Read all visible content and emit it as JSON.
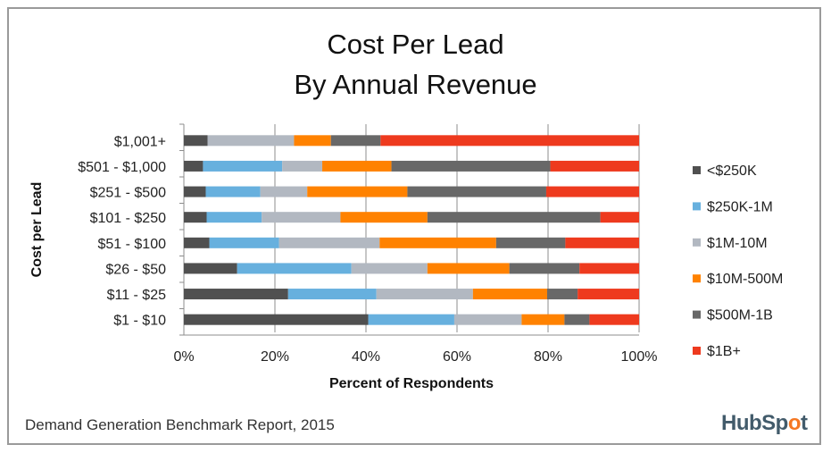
{
  "chart_data": {
    "type": "bar",
    "orientation": "horizontal",
    "stacked": true,
    "title_lines": [
      "Cost Per Lead",
      "By Annual Revenue"
    ],
    "xlabel": "Percent of Respondents",
    "ylabel": "Cost per Lead",
    "xlim": [
      0,
      100
    ],
    "xticks": [
      "0%",
      "20%",
      "40%",
      "60%",
      "80%",
      "100%"
    ],
    "grid": true,
    "legend_position": "right",
    "categories": [
      "$1,001+",
      "$501 - $1,000",
      "$251 - $500",
      "$101 - $250",
      "$51 - $100",
      "$26 - $50",
      "$11 - $25",
      "$1 - $10"
    ],
    "series": [
      {
        "name": "<$250K",
        "color": "#505050",
        "values": [
          5.2,
          4.2,
          4.8,
          5.0,
          5.6,
          11.7,
          22.9,
          40.5
        ]
      },
      {
        "name": "$250K-1M",
        "color": "#67B0DE",
        "values": [
          0,
          17.4,
          12.0,
          12.1,
          15.3,
          25.1,
          19.4,
          18.9
        ]
      },
      {
        "name": "$1M-10M",
        "color": "#B2B8C1",
        "values": [
          19.0,
          8.8,
          10.3,
          17.3,
          22.1,
          16.7,
          21.2,
          14.8
        ]
      },
      {
        "name": "$10M-500M",
        "color": "#FF8200",
        "values": [
          8.1,
          15.2,
          22.0,
          19.1,
          25.6,
          18.0,
          16.3,
          9.4
        ]
      },
      {
        "name": "$500M-1B",
        "color": "#686868",
        "values": [
          10.9,
          34.9,
          30.5,
          38.0,
          15.2,
          15.4,
          6.7,
          5.5
        ]
      },
      {
        "name": "$1B+",
        "color": "#EE3A1E",
        "values": [
          56.8,
          19.5,
          20.4,
          8.5,
          16.2,
          13.1,
          13.5,
          10.9
        ]
      }
    ]
  },
  "footer": "Demand Generation Benchmark Report, 2015",
  "logo": {
    "text_a": "HubSp",
    "text_o": "o",
    "text_b": "t"
  }
}
